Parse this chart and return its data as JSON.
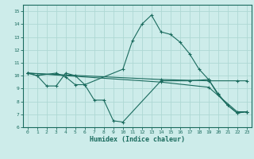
{
  "xlabel": "Humidex (Indice chaleur)",
  "xlim": [
    -0.5,
    23.5
  ],
  "ylim": [
    6.0,
    15.5
  ],
  "xticks": [
    0,
    1,
    2,
    3,
    4,
    5,
    6,
    7,
    8,
    9,
    10,
    11,
    12,
    13,
    14,
    15,
    16,
    17,
    18,
    19,
    20,
    21,
    22,
    23
  ],
  "yticks": [
    6,
    7,
    8,
    9,
    10,
    11,
    12,
    13,
    14,
    15
  ],
  "bg_color": "#cdecea",
  "line_color": "#1a6b5e",
  "grid_color": "#aed8d4",
  "lines": [
    {
      "x": [
        0,
        1,
        2,
        3,
        4,
        5,
        6,
        10,
        11,
        12,
        13,
        14,
        15,
        16,
        17,
        18,
        19,
        20,
        21,
        22,
        23
      ],
      "y": [
        10.2,
        10.0,
        9.2,
        9.2,
        10.2,
        10.0,
        9.3,
        10.5,
        12.7,
        14.0,
        14.7,
        13.4,
        13.2,
        12.6,
        11.7,
        10.5,
        9.7,
        8.5,
        7.7,
        7.1,
        7.2
      ]
    },
    {
      "x": [
        0,
        1,
        3,
        4,
        5,
        6,
        7,
        8,
        9,
        10,
        14,
        17,
        19,
        20,
        21,
        22,
        23
      ],
      "y": [
        10.2,
        10.0,
        10.2,
        9.9,
        9.3,
        9.3,
        8.1,
        8.1,
        6.5,
        6.4,
        9.6,
        9.6,
        9.7,
        8.6,
        7.7,
        7.1,
        7.2
      ]
    },
    {
      "x": [
        0,
        14,
        19,
        22,
        23
      ],
      "y": [
        10.2,
        9.5,
        9.1,
        7.2,
        7.2
      ]
    },
    {
      "x": [
        0,
        14,
        19,
        22,
        23
      ],
      "y": [
        10.2,
        9.7,
        9.6,
        9.6,
        9.6
      ]
    }
  ]
}
